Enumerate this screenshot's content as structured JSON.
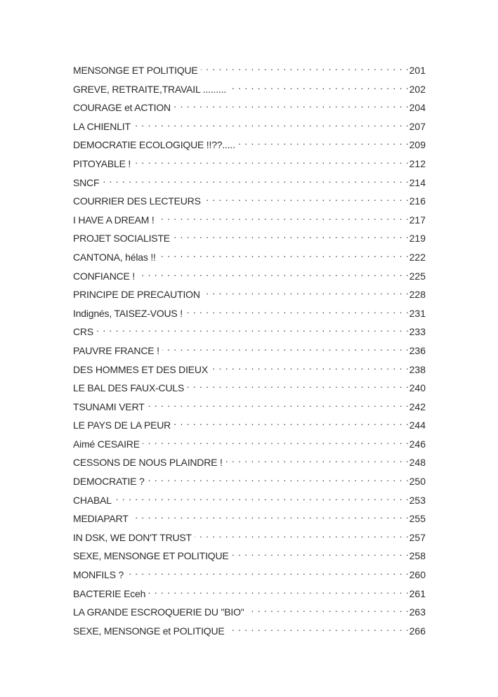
{
  "toc": {
    "entries": [
      {
        "title": "MENSONGE ET POLITIQUE",
        "page": "201"
      },
      {
        "title": "GREVE, RETRAITE,TRAVAIL .........",
        "page": "202"
      },
      {
        "title": "COURAGE et ACTION",
        "page": "204"
      },
      {
        "title": "LA CHIENLIT",
        "page": "207"
      },
      {
        "title": "DEMOCRATIE ECOLOGIQUE !!??.....",
        "page": "209"
      },
      {
        "title": "PITOYABLE !",
        "page": "212"
      },
      {
        "title": "SNCF",
        "page": "214"
      },
      {
        "title": "COURRIER DES LECTEURS",
        "page": "216"
      },
      {
        "title": "I HAVE A DREAM !",
        "page": "217"
      },
      {
        "title": "PROJET SOCIALISTE",
        "page": "219"
      },
      {
        "title": "CANTONA, hélas !!",
        "page": "222"
      },
      {
        "title": "CONFIANCE !",
        "page": "225"
      },
      {
        "title": "PRINCIPE DE PRECAUTION",
        "page": "228"
      },
      {
        "title": "Indignés, TAISEZ-VOUS !",
        "page": "231"
      },
      {
        "title": "CRS",
        "page": "233"
      },
      {
        "title": "PAUVRE FRANCE !",
        "page": "236"
      },
      {
        "title": "DES HOMMES ET DES DIEUX",
        "page": "238"
      },
      {
        "title": "LE BAL DES FAUX-CULS",
        "page": "240"
      },
      {
        "title": "TSUNAMI VERT",
        "page": "242"
      },
      {
        "title": "LE PAYS DE LA PEUR",
        "page": "244"
      },
      {
        "title": "Aimé CESAIRE",
        "page": "246"
      },
      {
        "title": "CESSONS DE NOUS PLAINDRE !",
        "page": "248"
      },
      {
        "title": "DEMOCRATIE ?",
        "page": "250"
      },
      {
        "title": "CHABAL",
        "page": "253"
      },
      {
        "title": "MEDIAPART",
        "page": "255"
      },
      {
        "title": "IN DSK, WE DON'T TRUST",
        "page": "257"
      },
      {
        "title": "SEXE, MENSONGE ET POLITIQUE",
        "page": "258"
      },
      {
        "title": "MONFILS ?",
        "page": "260"
      },
      {
        "title": "BACTERIE Eceh",
        "page": "261"
      },
      {
        "title": "LA GRANDE ESCROQUERIE DU \"BIO\"",
        "page": "263"
      },
      {
        "title": "SEXE, MENSONGE et POLITIQUE",
        "page": "266"
      }
    ]
  }
}
